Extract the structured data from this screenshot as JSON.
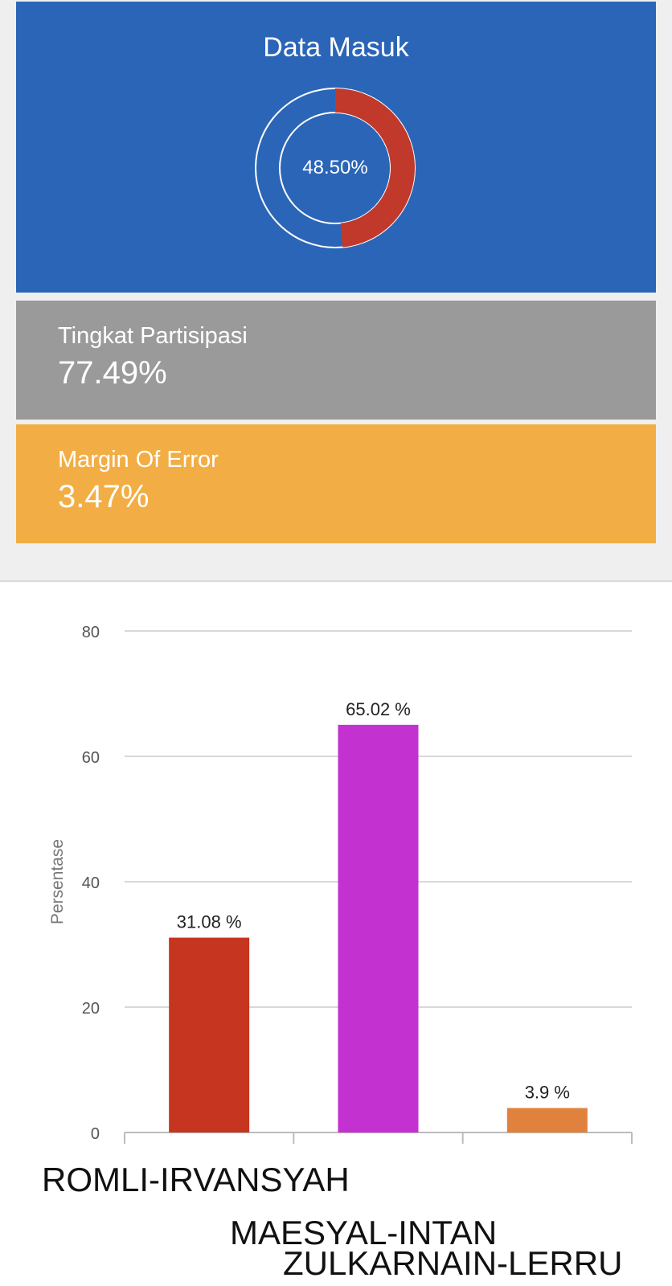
{
  "data_masuk": {
    "title": "Data Masuk",
    "percent_label": "48.50%",
    "percent_value": 48.5
  },
  "partisipasi": {
    "label": "Tingkat Partisipasi",
    "value": "77.49%"
  },
  "margin_error": {
    "label": "Margin Of Error",
    "value": "3.47%"
  },
  "colors": {
    "blue_card": "#2b65b7",
    "gray_card": "#9a9a9a",
    "orange_card": "#f2ae45",
    "donut_fill": "#c0392b"
  },
  "chart_data": {
    "type": "bar",
    "ylabel": "Persentase",
    "xlabel": "",
    "ylim": [
      0,
      80
    ],
    "yticks": [
      0,
      20,
      40,
      60,
      80
    ],
    "grid": true,
    "categories": [
      "ROMLI-IRVANSYAH",
      "MAESYAL-INTAN",
      "ZULKARNAIN-LERRU"
    ],
    "values": [
      31.08,
      65.02,
      3.9
    ],
    "data_labels": [
      "31.08 %",
      "65.02 %",
      "3.9 %"
    ],
    "colors": [
      "#c5351f",
      "#c331d0",
      "#e0823d"
    ]
  }
}
